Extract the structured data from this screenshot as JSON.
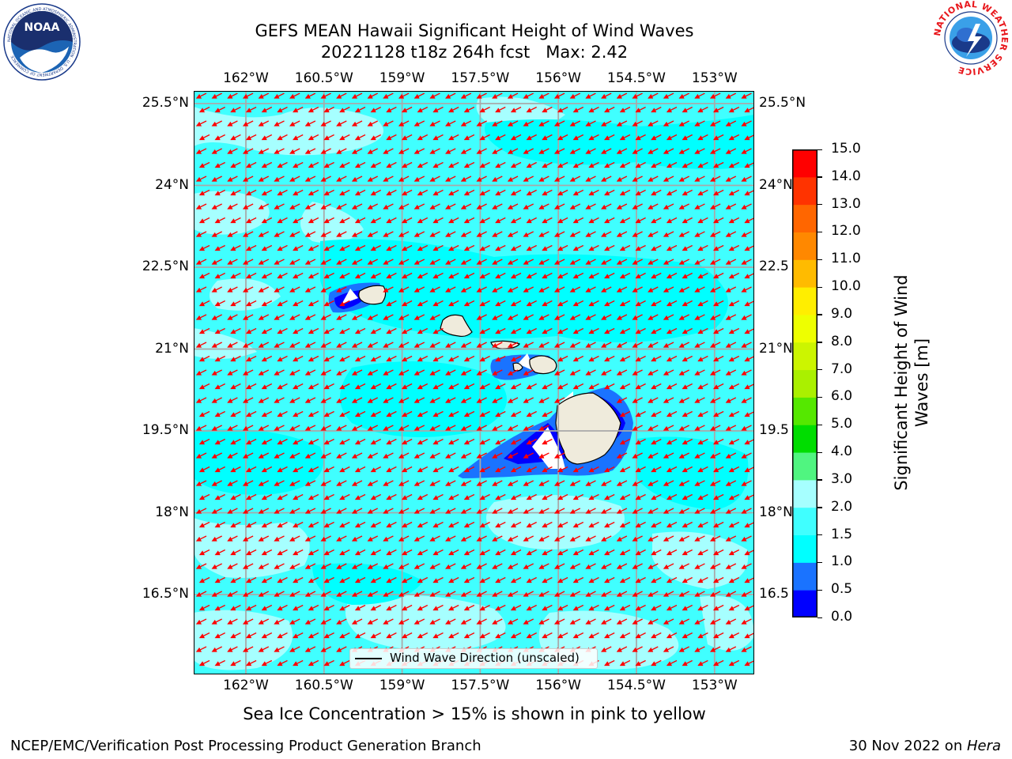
{
  "title": {
    "line1": "GEFS MEAN Hawaii Significant Height of Wind Waves",
    "line2": "20221128 t18z 264h fcst   Max: 2.42"
  },
  "logos": {
    "noaa_text": "NOAA",
    "noaa_ring": "NATIONAL OCEANIC AND ATMOSPHERIC ADMINISTRATION · U.S. DEPARTMENT OF COMMERCE",
    "nws_ring": "NATIONAL WEATHER SERVICE"
  },
  "map": {
    "lon_labels": [
      "162°W",
      "160.5°W",
      "159°W",
      "157.5°W",
      "156°W",
      "154.5°W",
      "153°W"
    ],
    "lat_labels": [
      "25.5°N",
      "24°N",
      "22.5°N",
      "21°N",
      "19.5°N",
      "18°N",
      "16.5°N"
    ],
    "lat_labels_right": [
      "25.5°N",
      "24°N",
      "22.5",
      "21°N",
      "19.5",
      "18°N",
      "16.5"
    ],
    "legend_label": "Wind Wave Direction (unscaled)",
    "ocean_color": "#00ffff",
    "arrow_color": "#ff0000",
    "land_color": "#efebdc"
  },
  "colorbar": {
    "title_line1": "Significant Height of Wind",
    "title_line2": "Waves [m]",
    "tick_labels": [
      "0.0",
      "0.5",
      "1.0",
      "1.5",
      "2.0",
      "3.0",
      "4.0",
      "5.0",
      "6.0",
      "7.0",
      "8.0",
      "9.0",
      "10.0",
      "11.0",
      "12.0",
      "13.0",
      "14.0",
      "15.0"
    ],
    "colors": [
      "#0000ff",
      "#1a73ff",
      "#00ffff",
      "#40ffff",
      "#a6ffff",
      "#50f580",
      "#00dd00",
      "#55e800",
      "#aaf000",
      "#ccf500",
      "#eeff00",
      "#ffee00",
      "#ffbb00",
      "#ff8800",
      "#ff6600",
      "#ff3300",
      "#ff0000"
    ]
  },
  "chart_data": {
    "type": "heatmap",
    "variable": "Significant Height of Wind Waves",
    "units": "m",
    "max_value": 2.42,
    "run": "20221128 t18z",
    "forecast_hour": "264h",
    "lon_ticks_deg": [
      -162,
      -160.5,
      -159,
      -157.5,
      -156,
      -154.5,
      -153
    ],
    "lat_ticks_deg": [
      25.5,
      24,
      22.5,
      21,
      19.5,
      18,
      16.5
    ],
    "levels": [
      0.0,
      0.5,
      1.0,
      1.5,
      2.0,
      3.0,
      4.0,
      5.0,
      6.0,
      7.0,
      8.0,
      9.0,
      10.0,
      11.0,
      12.0,
      13.0,
      14.0,
      15.0
    ],
    "wind_wave_direction": "from east-northeast (arrows pointing west-southwest)"
  },
  "footer": {
    "note": "Sea Ice Concentration > 15% is shown in pink to yellow",
    "left": "NCEP/EMC/Verification Post Processing Product Generation Branch",
    "right_prefix": "30 Nov 2022 on ",
    "right_host": "Hera"
  }
}
